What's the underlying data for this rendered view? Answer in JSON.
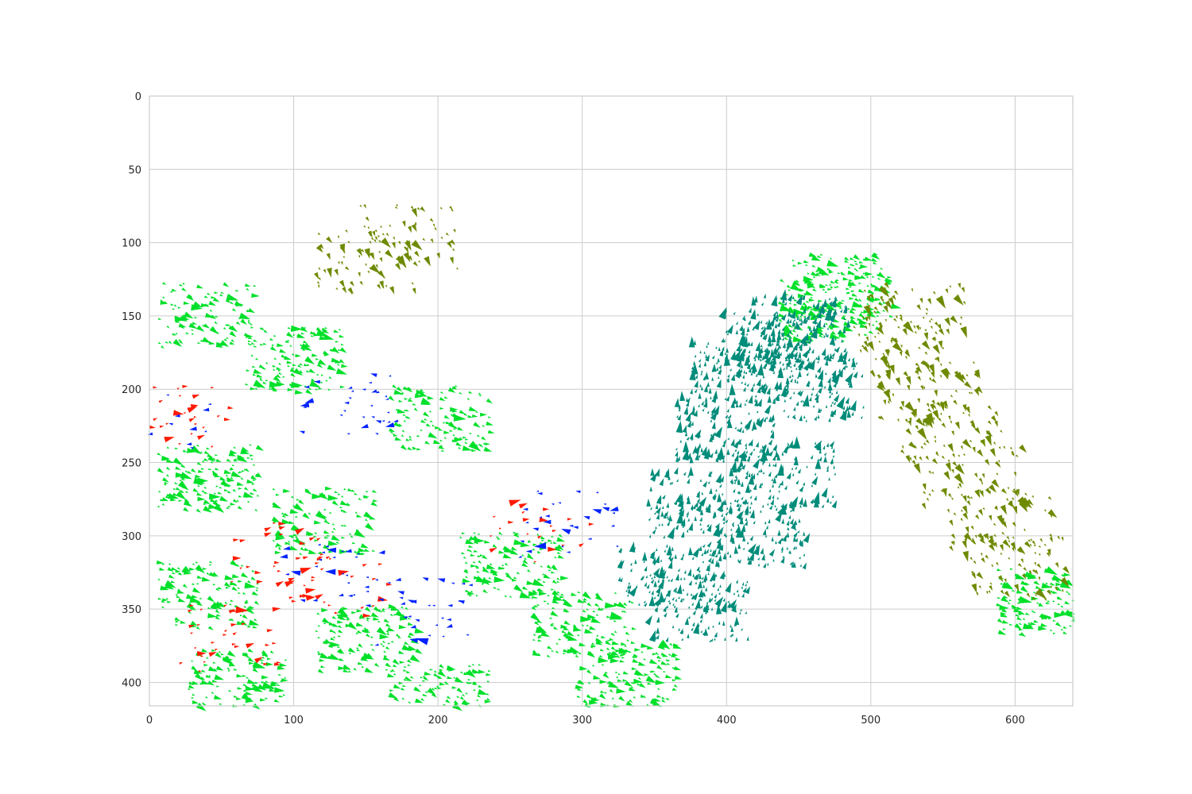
{
  "chart_data": {
    "type": "scatter",
    "subtype": "quiver",
    "title": "",
    "xlabel": "",
    "ylabel": "",
    "xlim": [
      0,
      640
    ],
    "ylim": [
      416,
      0
    ],
    "y_inverted": true,
    "grid": true,
    "legend": "none",
    "x_ticks": [
      0,
      100,
      200,
      300,
      400,
      500,
      600
    ],
    "y_ticks": [
      0,
      50,
      100,
      150,
      200,
      250,
      300,
      350,
      400
    ],
    "colors": {
      "dominant": "#00e02a",
      "secondary": "#008c7a",
      "tertiary": "#6e8a00",
      "outlier_red": "#ff1a00",
      "outlier_blue": "#0022ff",
      "grid": "#cccccc",
      "axis": "#cccccc"
    },
    "series": [
      {
        "color_key": "dominant",
        "approx_count": 2200,
        "description_points": [
          [
            40,
            150
          ],
          [
            100,
            180
          ],
          [
            200,
            220
          ],
          [
            40,
            260
          ],
          [
            120,
            290
          ],
          [
            250,
            320
          ],
          [
            40,
            340
          ],
          [
            150,
            370
          ],
          [
            300,
            360
          ],
          [
            60,
            400
          ],
          [
            200,
            410
          ],
          [
            330,
            395
          ],
          [
            480,
            130
          ],
          [
            470,
            145
          ],
          [
            620,
            345
          ]
        ],
        "mean_direction_deg": -20
      },
      {
        "color_key": "secondary",
        "approx_count": 1400,
        "description_points": [
          [
            360,
            330
          ],
          [
            380,
            280
          ],
          [
            400,
            230
          ],
          [
            410,
            190
          ],
          [
            430,
            170
          ],
          [
            450,
            160
          ],
          [
            460,
            200
          ],
          [
            440,
            260
          ],
          [
            420,
            300
          ],
          [
            380,
            350
          ]
        ],
        "mean_direction_deg": 75
      },
      {
        "color_key": "tertiary",
        "approx_count": 600,
        "description_points": [
          [
            520,
            170
          ],
          [
            540,
            200
          ],
          [
            555,
            230
          ],
          [
            570,
            260
          ],
          [
            590,
            290
          ],
          [
            600,
            320
          ],
          [
            530,
            150
          ],
          [
            150,
            110
          ],
          [
            180,
            95
          ]
        ],
        "mean_direction_deg": -60
      },
      {
        "color_key": "outlier_red",
        "approx_count": 150,
        "description_points": [
          [
            25,
            218
          ],
          [
            90,
            313
          ],
          [
            130,
            333
          ],
          [
            55,
            370
          ],
          [
            270,
            300
          ]
        ],
        "mean_direction_deg": 10
      },
      {
        "color_key": "outlier_blue",
        "approx_count": 150,
        "description_points": [
          [
            10,
            225
          ],
          [
            140,
            209
          ],
          [
            190,
            352
          ],
          [
            290,
            292
          ],
          [
            130,
            328
          ]
        ],
        "mean_direction_deg": 180
      }
    ]
  }
}
